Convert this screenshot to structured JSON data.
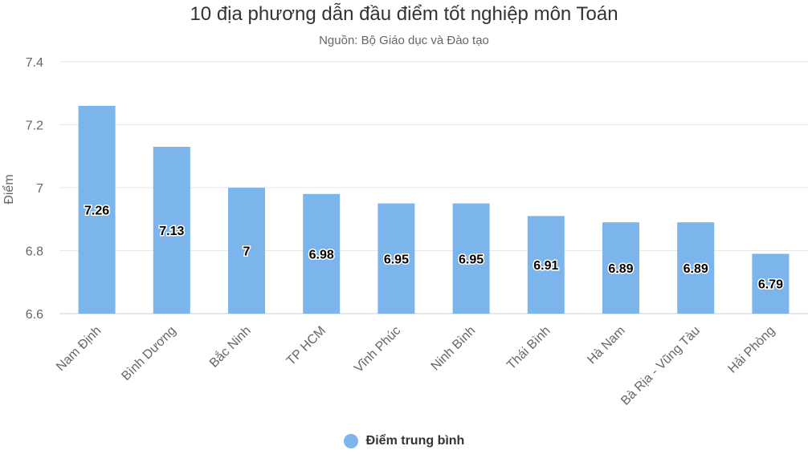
{
  "chart_data": {
    "type": "bar",
    "title": "10 địa phương dẫn đầu điểm tốt nghiệp môn Toán",
    "subtitle": "Nguồn: Bộ Giáo dục và Đào tạo",
    "xlabel": "",
    "ylabel": "Điểm",
    "ylim": [
      6.6,
      7.4
    ],
    "yticks": [
      "6.6",
      "6.8",
      "7",
      "7.2",
      "7.4"
    ],
    "categories": [
      "Nam Định",
      "Bình Dương",
      "Bắc Ninh",
      "TP HCM",
      "Vĩnh Phúc",
      "Ninh Bình",
      "Thái Bình",
      "Hà Nam",
      "Bà Rịa - Vũng Tàu",
      "Hải Phòng"
    ],
    "series": [
      {
        "name": "Điểm trung bình",
        "color": "#7cb5ec",
        "values": [
          7.26,
          7.13,
          7,
          6.98,
          6.95,
          6.95,
          6.91,
          6.89,
          6.89,
          6.79
        ],
        "labels": [
          "7.26",
          "7.13",
          "7",
          "6.98",
          "6.95",
          "6.95",
          "6.91",
          "6.89",
          "6.89",
          "6.79"
        ]
      }
    ],
    "grid": true,
    "legend_position": "bottom-center",
    "gridline_color": "#e6e6e6"
  }
}
